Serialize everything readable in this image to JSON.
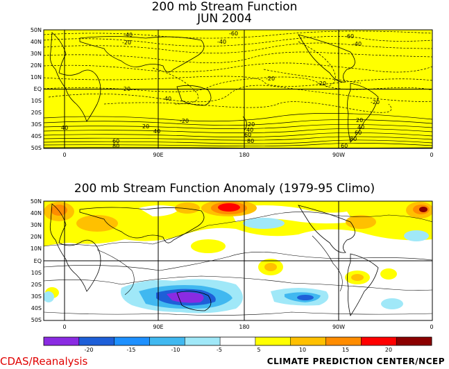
{
  "top_panel": {
    "title_line1": "200 mb Stream Function",
    "title_line2": "JUN 2004",
    "lat_labels": [
      "50N",
      "40N",
      "30N",
      "20N",
      "10N",
      "EQ",
      "10S",
      "20S",
      "30S",
      "40S",
      "50S"
    ],
    "lon_labels": [
      "0",
      "90E",
      "180",
      "90W",
      "0"
    ],
    "contour_labels": [
      {
        "text": "-40"
      },
      {
        "text": "-20"
      },
      {
        "text": "-60"
      },
      {
        "text": "-40"
      },
      {
        "text": "-60"
      },
      {
        "text": "-40"
      },
      {
        "text": "-20"
      },
      {
        "text": "-20"
      },
      {
        "text": "-20"
      },
      {
        "text": "-40"
      },
      {
        "text": "-20"
      },
      {
        "text": "-20"
      },
      {
        "text": "40"
      },
      {
        "text": "20"
      },
      {
        "text": "40"
      },
      {
        "text": "60"
      },
      {
        "text": "80"
      },
      {
        "text": "20"
      },
      {
        "text": "40"
      },
      {
        "text": "60"
      },
      {
        "text": "80"
      },
      {
        "text": "20"
      },
      {
        "text": "40"
      },
      {
        "text": "60"
      },
      {
        "text": "80"
      },
      {
        "text": "60"
      }
    ],
    "fill_color": "#ffff00"
  },
  "bottom_panel": {
    "title": "200 mb Stream Function Anomaly (1979-95 Climo)",
    "lat_labels": [
      "50N",
      "40N",
      "30N",
      "20N",
      "10N",
      "EQ",
      "10S",
      "20S",
      "30S",
      "40S",
      "50S"
    ],
    "lon_labels": [
      "0",
      "90E",
      "180",
      "90W",
      "0"
    ]
  },
  "colorbar": {
    "labels": [
      "-20",
      "-15",
      "-10",
      "-5",
      "5",
      "10",
      "15",
      "20"
    ],
    "colors": [
      "#8a2be2",
      "#1e5fd8",
      "#1e90ff",
      "#40b8f0",
      "#a0e8f8",
      "#ffffff",
      "#ffff00",
      "#ffc000",
      "#ff8c00",
      "#ff0000",
      "#8b0000"
    ]
  },
  "footer": {
    "left": "CDAS/Reanalysis",
    "right": "CLIMATE PREDICTION CENTER/NCEP"
  }
}
